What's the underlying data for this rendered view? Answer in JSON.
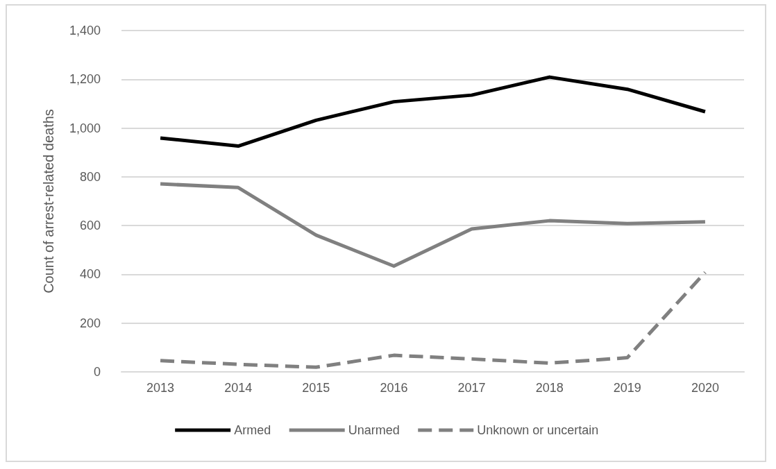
{
  "chart_data": {
    "type": "line",
    "ylabel": "Count of arrest-related deaths",
    "categories": [
      "2013",
      "2014",
      "2015",
      "2016",
      "2017",
      "2018",
      "2019",
      "2020"
    ],
    "series": [
      {
        "name": "Armed",
        "color": "#000000",
        "line_style": "solid",
        "values": [
          959,
          926,
          1032,
          1108,
          1135,
          1209,
          1159,
          1067
        ]
      },
      {
        "name": "Unarmed",
        "color": "#808080",
        "line_style": "solid",
        "values": [
          771,
          756,
          561,
          434,
          586,
          620,
          608,
          615
        ]
      },
      {
        "name": "Unknown or uncertain",
        "color": "#808080",
        "line_style": "dashed",
        "values": [
          46,
          31,
          19,
          68,
          53,
          36,
          58,
          408
        ]
      }
    ],
    "ylim": [
      0,
      1400
    ],
    "yticks": [
      0,
      200,
      400,
      600,
      800,
      {
        "value": 1000,
        "label": "1,000"
      },
      {
        "value": 1200,
        "label": "1,200"
      },
      {
        "value": 1400,
        "label": "1,400"
      }
    ],
    "grid": "y",
    "legend": "bottom",
    "marker": "none"
  }
}
